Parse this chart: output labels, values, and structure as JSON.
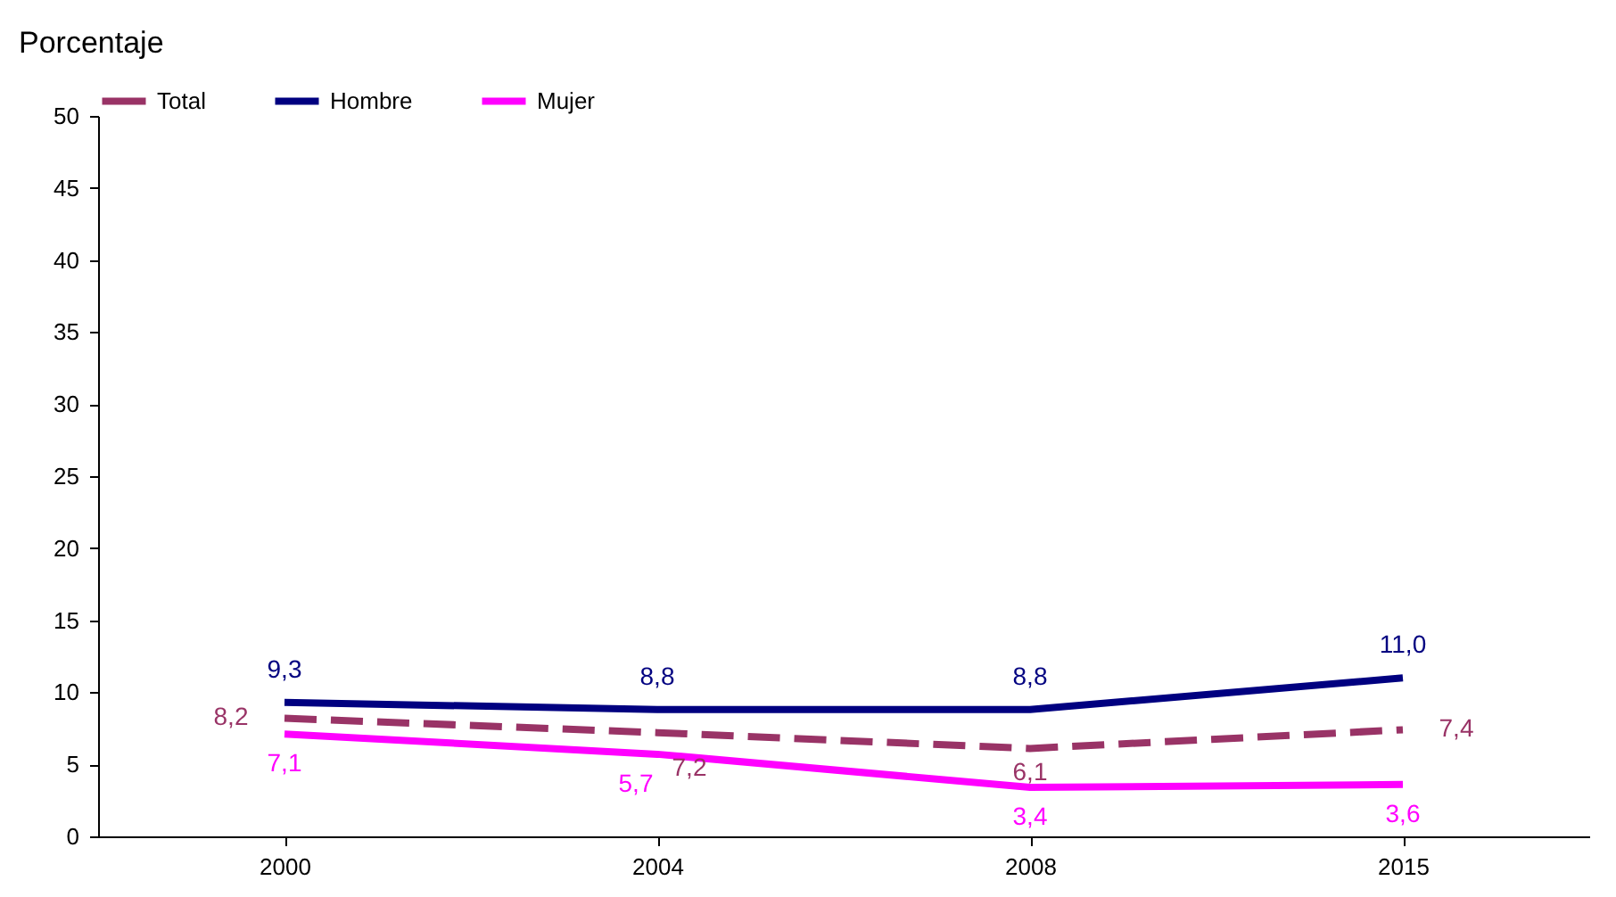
{
  "chart_data": {
    "type": "line",
    "ylabel": "Porcentaje",
    "categories": [
      "2000",
      "2004",
      "2008",
      "2015"
    ],
    "series": [
      {
        "name": "Total",
        "color": "#993366",
        "line_style": "dashed",
        "values": [
          8.2,
          7.2,
          6.1,
          7.4
        ],
        "value_labels": [
          "8,2",
          "7,2",
          "6,1",
          "7,4"
        ]
      },
      {
        "name": "Hombre",
        "color": "#000080",
        "line_style": "solid",
        "values": [
          9.3,
          8.8,
          8.8,
          11.0
        ],
        "value_labels": [
          "9,3",
          "8,8",
          "8,8",
          "11,0"
        ]
      },
      {
        "name": "Mujer",
        "color": "#ff00ff",
        "line_style": "solid",
        "values": [
          7.1,
          5.7,
          3.4,
          3.6
        ],
        "value_labels": [
          "7,1",
          "5,7",
          "3,4",
          "3,6"
        ]
      }
    ],
    "ylim": [
      0,
      50
    ],
    "yticks": [
      0,
      5,
      10,
      15,
      20,
      25,
      30,
      35,
      40,
      45,
      50
    ],
    "grid": false,
    "legend": "top",
    "marker": "none"
  }
}
